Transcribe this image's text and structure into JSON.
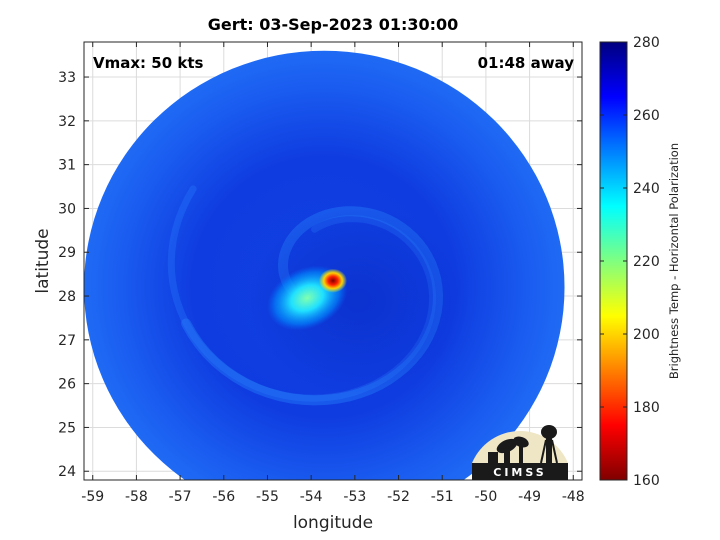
{
  "chart_data": {
    "type": "heatmap",
    "title": "Gert: 03-Sep-2023 01:30:00",
    "xlabel": "longitude",
    "ylabel": "latitude",
    "xlim": [
      -59.2,
      -47.8
    ],
    "ylim": [
      23.8,
      33.8
    ],
    "x_ticks": [
      -59,
      -58,
      -57,
      -56,
      -55,
      -54,
      -53,
      -52,
      -51,
      -50,
      -49,
      -48
    ],
    "y_ticks": [
      24,
      25,
      26,
      27,
      28,
      29,
      30,
      31,
      32,
      33
    ],
    "grid": true,
    "annotations": {
      "top_left": "Vmax: 50 kts",
      "top_right": "01:48 away"
    },
    "swath": {
      "center_lon": -53.7,
      "center_lat": 28.2,
      "radius_lon": 5.5,
      "radius_lat": 5.4,
      "background_temp_k": 265
    },
    "features": {
      "warm_core_center": {
        "lon": -53.5,
        "lat": 28.35,
        "min_temp_k": 180
      },
      "cool_band_center": {
        "lon": -54.0,
        "lat": 28.0,
        "temp_k": 230
      }
    },
    "colorbar": {
      "label": "Brightness Temp - Horizontal Polarization",
      "min": 160,
      "max": 280,
      "ticks": [
        280,
        260,
        240,
        220,
        200,
        180,
        160
      ],
      "colormap": "jet",
      "colormap_stops": [
        "#800000",
        "#ff0000",
        "#ff8000",
        "#ffff00",
        "#80ff80",
        "#00ffff",
        "#0080ff",
        "#0000ff",
        "#000080"
      ]
    },
    "logo": "CIMSS"
  }
}
